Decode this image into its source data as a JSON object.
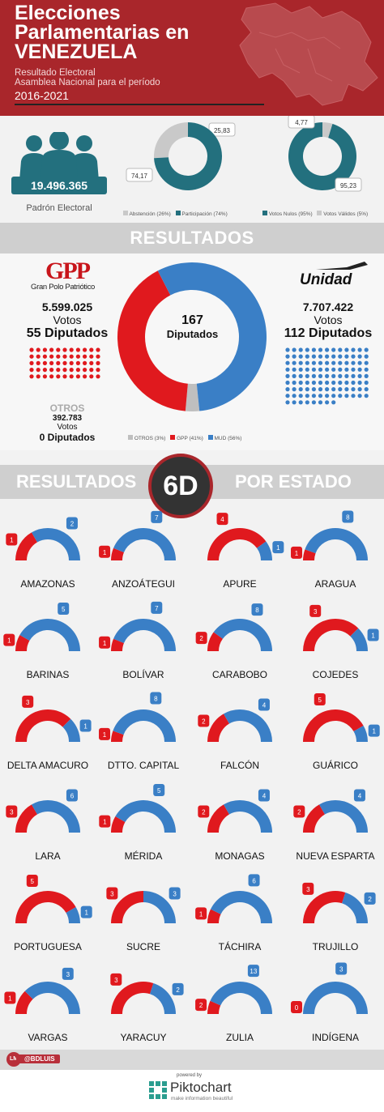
{
  "header": {
    "title_lines": [
      "Elecciones",
      "Parlamentarias en",
      "VENEZUELA"
    ],
    "subtitle_lines": [
      "Resultado Electoral",
      "Asamblea Nacional para el período"
    ],
    "years": "2016-2021"
  },
  "padron": {
    "value": "19.496.365",
    "label": "Padrón Electoral"
  },
  "chart_data": [
    {
      "type": "pie",
      "title": "",
      "categories": [
        "Abstención (26%)",
        "Participación (74%)"
      ],
      "values": [
        25.83,
        74.17
      ],
      "value_labels": [
        "25,83",
        "74,17"
      ],
      "colors": [
        "#c9c9c9",
        "#23707e"
      ]
    },
    {
      "type": "pie",
      "title": "",
      "categories": [
        "Votos Nulos (95%)",
        "Votos Válidos (5%)"
      ],
      "values": [
        95.23,
        4.77
      ],
      "value_labels": [
        "95,23",
        "4,77"
      ],
      "colors": [
        "#23707e",
        "#c9c9c9"
      ]
    },
    {
      "type": "pie",
      "title": "",
      "categories": [
        "OTROS (3%)",
        "GPP (41%)",
        "MUD (56%)"
      ],
      "values": [
        3,
        41,
        56
      ],
      "colors": [
        "#bfbfbf",
        "#e0191e",
        "#3a7fc6"
      ],
      "center_value": "167",
      "center_label": "Diputados"
    },
    {
      "type": "pie",
      "title": "Resultados por estado",
      "categories": [
        "AMAZONAS",
        "ANZOÁTEGUI",
        "APURE",
        "ARAGUA",
        "BARINAS",
        "BOLÍVAR",
        "CARABOBO",
        "COJEDES",
        "DELTA AMACURO",
        "DTTO. CAPITAL",
        "FALCÓN",
        "GUÁRICO",
        "LARA",
        "MÉRIDA",
        "MONAGAS",
        "NUEVA ESPARTA",
        "PORTUGUESA",
        "SUCRE",
        "TÁCHIRA",
        "TRUJILLO",
        "VARGAS",
        "YARACUY",
        "ZULIA",
        "INDÍGENA"
      ],
      "series": [
        {
          "name": "GPP",
          "values": [
            1,
            1,
            4,
            1,
            1,
            1,
            2,
            3,
            3,
            1,
            2,
            5,
            3,
            1,
            2,
            2,
            5,
            3,
            1,
            3,
            1,
            3,
            2,
            0
          ]
        },
        {
          "name": "MUD",
          "values": [
            2,
            7,
            1,
            8,
            5,
            7,
            8,
            1,
            1,
            8,
            4,
            1,
            6,
            5,
            4,
            4,
            1,
            3,
            6,
            2,
            3,
            2,
            13,
            3
          ]
        }
      ],
      "colors": [
        "#e0191e",
        "#3a7fc6"
      ]
    }
  ],
  "gpp": {
    "logo_text": "GPP",
    "logo_sub": "Gran Polo Patriótico",
    "votes": "5.599.025",
    "votes_label": "Votos",
    "seats": "55 Diputados"
  },
  "mud": {
    "logo_text": "Unidad",
    "votes": "7.707.422",
    "votes_label": "Votos",
    "seats": "112 Diputados"
  },
  "otros": {
    "label": "OTROS",
    "votes": "392.783",
    "votes_label": "Votos",
    "seats": "0 Diputados"
  },
  "banner_resultados": "RESULTADOS",
  "state_banner": {
    "left": "RESULTADOS",
    "badge": "6D",
    "right": "POR ESTADO"
  },
  "footer": {
    "author_initials": "LM",
    "author": "@BDLUIS",
    "powered": "powered by",
    "brand": "Piktochart",
    "tagline": "make information beautiful"
  },
  "colors": {
    "header_red": "#a9262b",
    "teal": "#23707e",
    "gpp_red": "#e0191e",
    "mud_blue": "#3a7fc6",
    "grey": "#c9c9c9"
  }
}
